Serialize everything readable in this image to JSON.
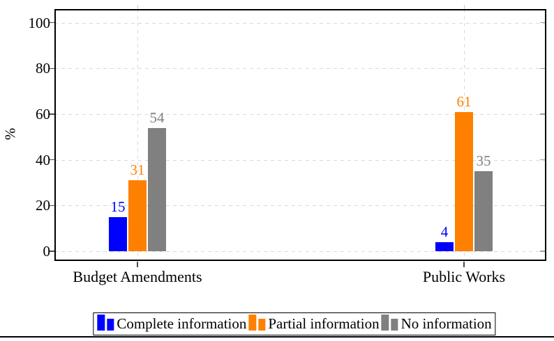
{
  "chart_data": {
    "type": "bar",
    "title": "",
    "ylabel": "%",
    "xlabel": "",
    "categories": [
      "Budget Amendments",
      "Public Works"
    ],
    "series": [
      {
        "name": "Complete information",
        "color": "#0000ff",
        "values": [
          15,
          4
        ]
      },
      {
        "name": "Partial information",
        "color": "#ff8000",
        "values": [
          31,
          61
        ]
      },
      {
        "name": "No information",
        "color": "#808080",
        "values": [
          54,
          35
        ]
      }
    ],
    "bar_value_labels_shown": true,
    "yticks": [
      0,
      20,
      40,
      60,
      80,
      100
    ],
    "ytick_labels": [
      "0",
      "20",
      "40",
      "60",
      "80",
      "100"
    ],
    "ylim": [
      -4.3,
      106
    ],
    "grid": {
      "horizontal": "dashed",
      "vertical": "dashed-at-category-centers",
      "color": "#d9d9d9"
    },
    "axis_color": "#000000",
    "legend": {
      "position": "below-chart-boxed",
      "entries": [
        "Complete information",
        "Partial information",
        "No information"
      ]
    }
  }
}
